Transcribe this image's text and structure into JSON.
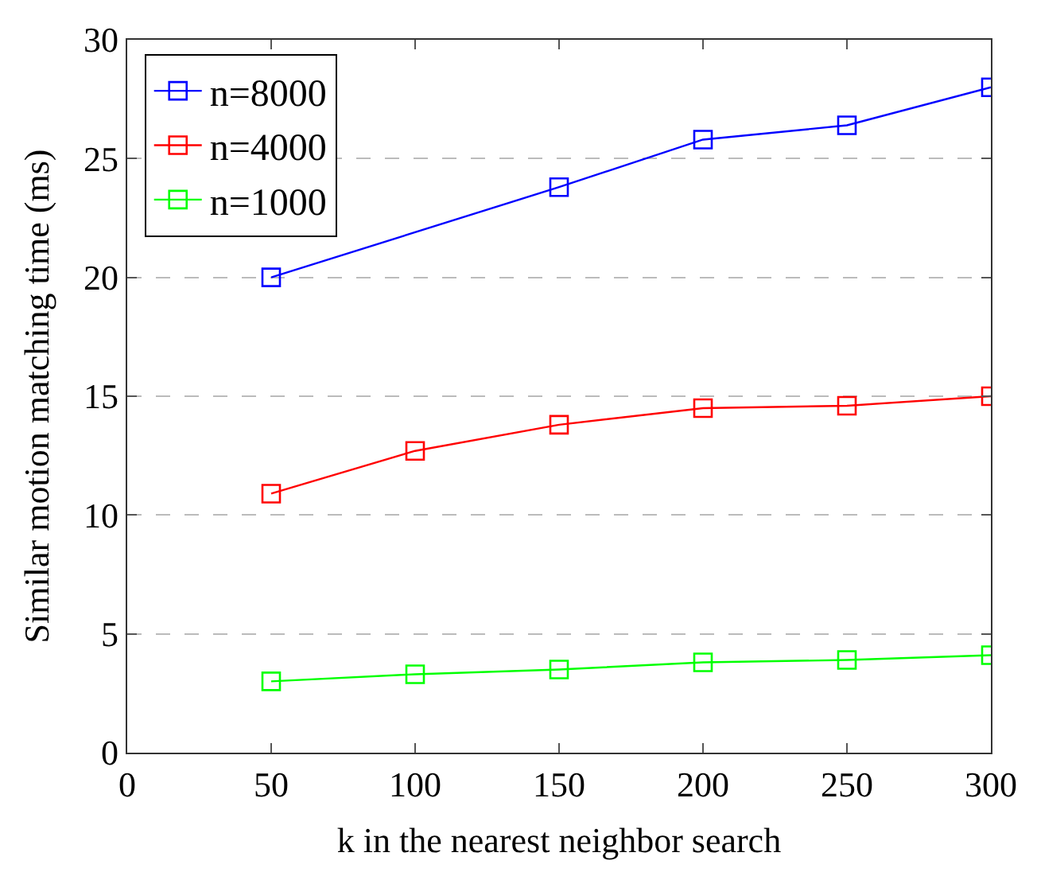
{
  "chart_data": {
    "type": "line",
    "xlabel": "k in the nearest neighbor search",
    "ylabel": "Similar motion matching time (ms)",
    "x": [
      50,
      100,
      150,
      200,
      250,
      300
    ],
    "series": [
      {
        "name": "n=8000",
        "color": "#0000ff",
        "values": [
          20.0,
          null,
          23.8,
          25.8,
          26.4,
          28.0
        ]
      },
      {
        "name": "n=4000",
        "color": "#ff0000",
        "values": [
          10.9,
          12.7,
          13.8,
          14.5,
          14.6,
          15.0
        ]
      },
      {
        "name": "n=1000",
        "color": "#00ff00",
        "values": [
          3.0,
          3.3,
          3.5,
          3.8,
          3.9,
          4.1
        ]
      }
    ],
    "xlim": [
      0,
      300
    ],
    "xticks": [
      0,
      50,
      100,
      150,
      200,
      250,
      300
    ],
    "ylim": [
      0,
      30
    ],
    "yticks": [
      0,
      5,
      10,
      15,
      20,
      25,
      30
    ],
    "grid": "y",
    "legend": "top left",
    "marker": "square",
    "line_style": "solid"
  }
}
